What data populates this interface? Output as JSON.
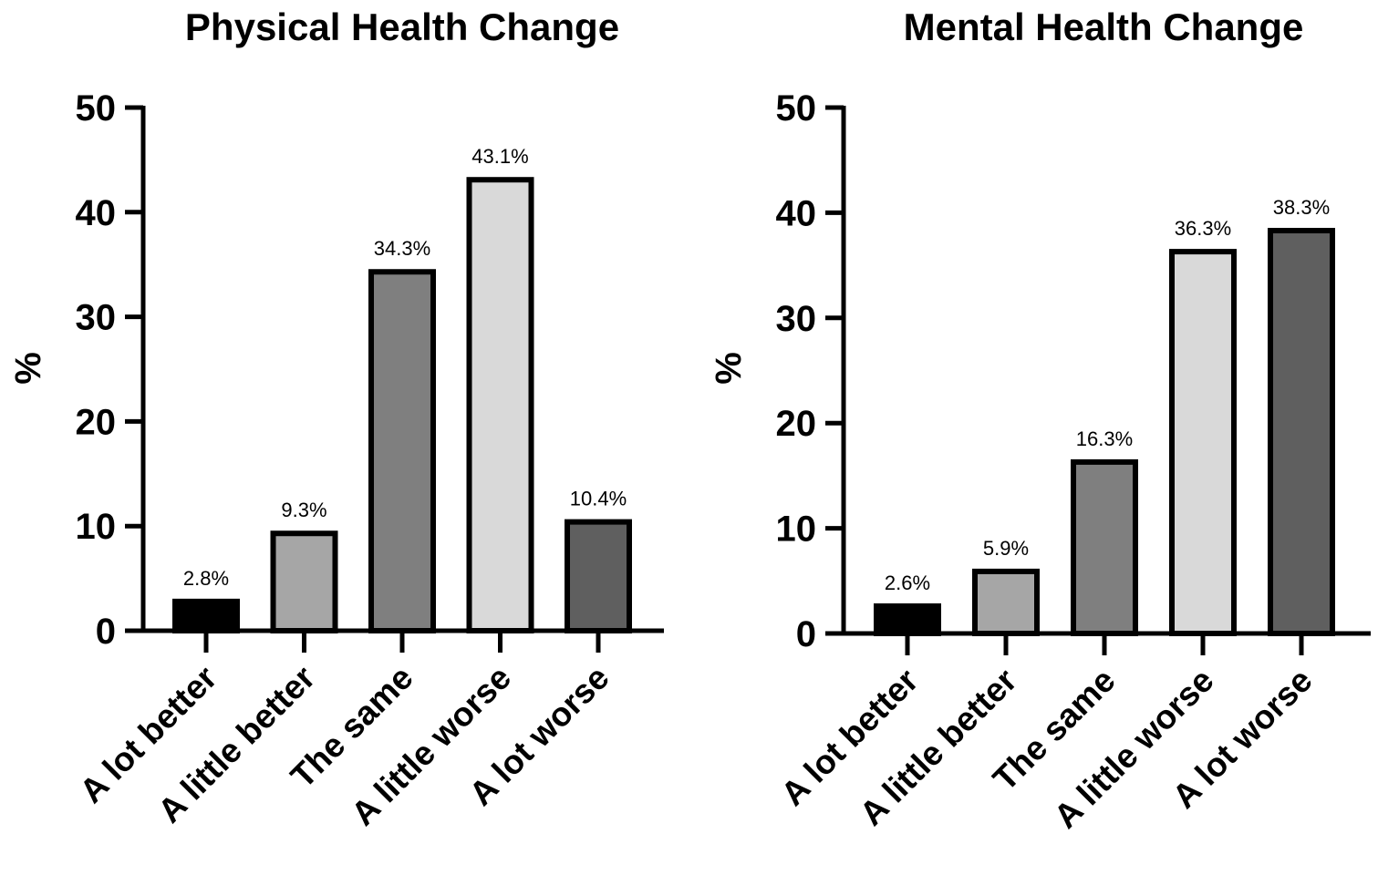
{
  "chart_data": [
    {
      "type": "bar",
      "title": "Physical Health Change",
      "xlabel": "",
      "ylabel": "%",
      "ylim": [
        0,
        50
      ],
      "yticks": [
        0,
        10,
        20,
        30,
        40,
        50
      ],
      "categories": [
        "A lot better",
        "A little better",
        "The same",
        "A little worse",
        "A lot worse"
      ],
      "values": [
        2.8,
        9.3,
        34.3,
        43.1,
        10.4
      ],
      "data_labels": [
        "2.8%",
        "9.3%",
        "34.3%",
        "43.1%",
        "10.4%"
      ],
      "bar_colors": [
        "#000000",
        "#a6a6a6",
        "#7f7f7f",
        "#d9d9d9",
        "#5f5f5f"
      ],
      "grid": false,
      "legend": "none"
    },
    {
      "type": "bar",
      "title": "Mental Health Change",
      "xlabel": "",
      "ylabel": "%",
      "ylim": [
        0,
        50
      ],
      "yticks": [
        0,
        10,
        20,
        30,
        40,
        50
      ],
      "categories": [
        "A lot better",
        "A little better",
        "The same",
        "A little worse",
        "A lot worse"
      ],
      "values": [
        2.6,
        5.9,
        16.3,
        36.3,
        38.3
      ],
      "data_labels": [
        "2.6%",
        "5.9%",
        "16.3%",
        "36.3%",
        "38.3%"
      ],
      "bar_colors": [
        "#000000",
        "#a6a6a6",
        "#7f7f7f",
        "#d9d9d9",
        "#5f5f5f"
      ],
      "grid": false,
      "legend": "none"
    }
  ]
}
